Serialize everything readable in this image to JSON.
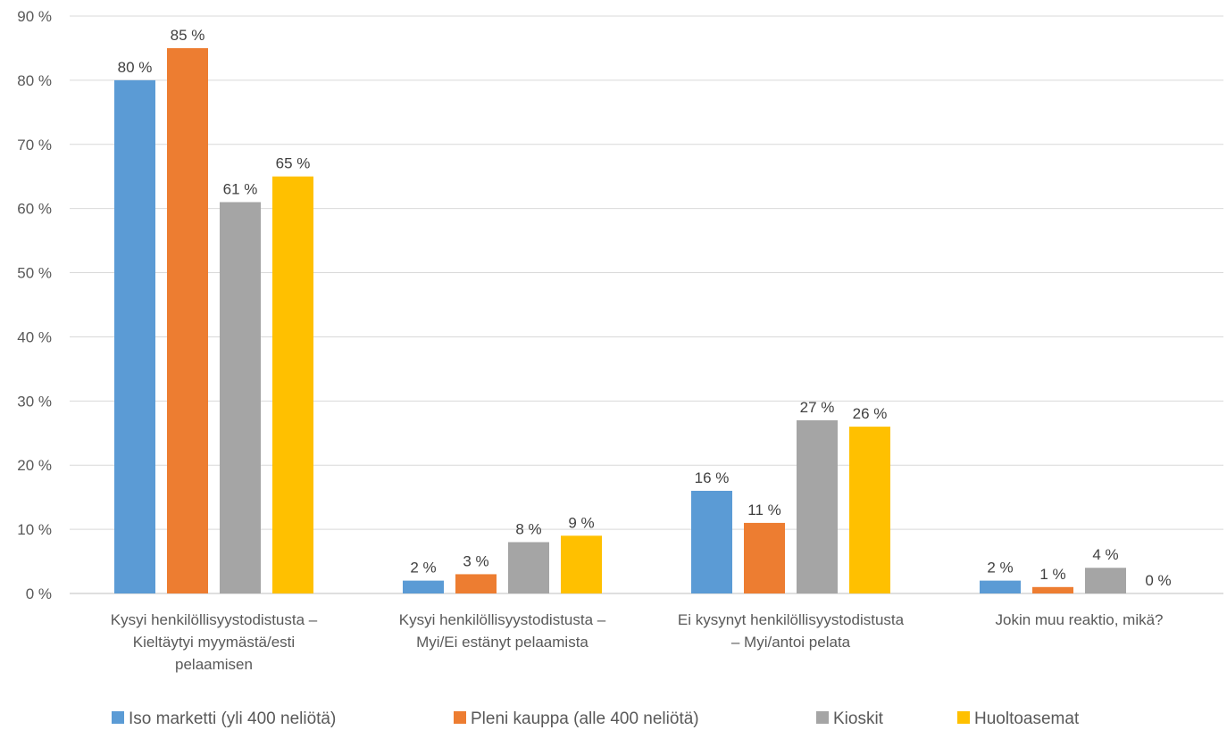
{
  "chart_data": {
    "type": "bar",
    "title": "",
    "xlabel": "",
    "ylabel": "",
    "ylim": [
      0,
      90
    ],
    "yticks": [
      0,
      10,
      20,
      30,
      40,
      50,
      60,
      70,
      80,
      90
    ],
    "ytick_labels": [
      "0 %",
      "10 %",
      "20 %",
      "30 %",
      "40 %",
      "50 %",
      "60 %",
      "70 %",
      "80 %",
      "90 %"
    ],
    "grid": true,
    "legend_position": "bottom",
    "categories": [
      [
        "Kysyi henkilöllisyystodistusta –",
        "Kieltäytyi myymästä/esti",
        "pelaamisen"
      ],
      [
        "Kysyi henkilöllisyystodistusta –",
        "Myi/Ei estänyt pelaamista"
      ],
      [
        "Ei kysynyt henkilöllisyystodistusta",
        "– Myi/antoi pelata"
      ],
      [
        "Jokin muu reaktio, mikä?"
      ]
    ],
    "series": [
      {
        "name": "Iso marketti (yli 400 neliötä)",
        "color": "#5B9BD5",
        "values": [
          80,
          2,
          16,
          2
        ],
        "labels": [
          "80 %",
          "2 %",
          "16 %",
          "2 %"
        ]
      },
      {
        "name": "Pleni kauppa (alle 400 neliötä)",
        "color": "#ED7D31",
        "values": [
          85,
          3,
          11,
          1
        ],
        "labels": [
          "85 %",
          "3 %",
          "11 %",
          "1 %"
        ]
      },
      {
        "name": "Kioskit",
        "color": "#A5A5A5",
        "values": [
          61,
          8,
          27,
          4
        ],
        "labels": [
          "61 %",
          "8 %",
          "27 %",
          "4 %"
        ]
      },
      {
        "name": "Huoltoasemat",
        "color": "#FFC000",
        "values": [
          65,
          9,
          26,
          0
        ],
        "labels": [
          "65 %",
          "9 %",
          "26 %",
          "0 %"
        ]
      }
    ]
  }
}
